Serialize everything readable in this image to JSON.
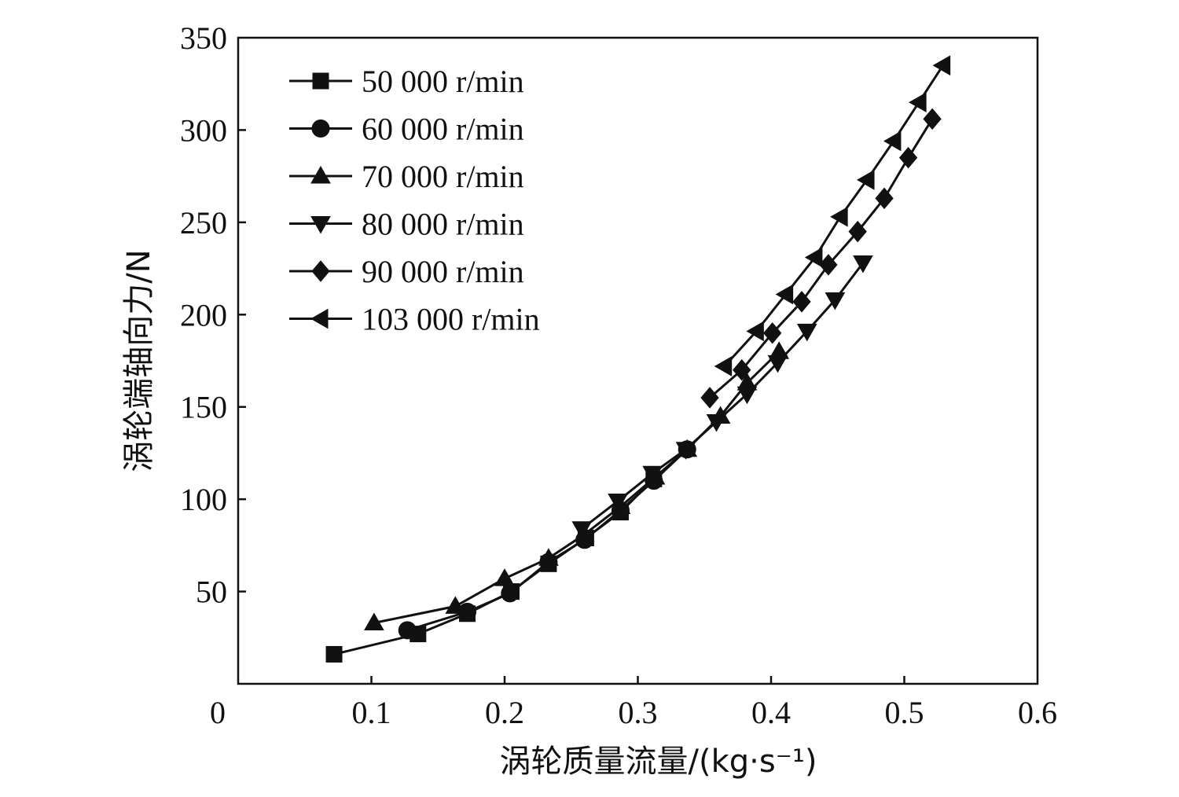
{
  "chart_data": {
    "type": "line",
    "xlabel": "涡轮质量流量/(kg·s⁻¹)",
    "ylabel": "涡轮端轴向力/N",
    "xlim": [
      0,
      0.6
    ],
    "ylim": [
      0,
      350
    ],
    "x_ticks": [
      "0",
      "0.1",
      "0.2",
      "0.3",
      "0.4",
      "0.5",
      "0.6"
    ],
    "y_ticks": [
      "50",
      "100",
      "150",
      "200",
      "250",
      "300",
      "350"
    ],
    "grid": false,
    "legend_position": "top-left",
    "color": "#111111",
    "series": [
      {
        "name": "50 000 r/min",
        "marker": "square",
        "x": [
          0.072,
          0.135,
          0.172,
          0.205,
          0.233,
          0.261,
          0.287,
          0.312
        ],
        "y": [
          16,
          27,
          38,
          50,
          65,
          79,
          93,
          111
        ]
      },
      {
        "name": "60 000 r/min",
        "marker": "circle",
        "x": [
          0.127,
          0.172,
          0.204,
          0.233,
          0.26,
          0.287,
          0.312,
          0.337
        ],
        "y": [
          29,
          39,
          49,
          66,
          78,
          94,
          110,
          127
        ]
      },
      {
        "name": "70 000 r/min",
        "marker": "triangle-up",
        "x": [
          0.102,
          0.163,
          0.2,
          0.233,
          0.26,
          0.287,
          0.313,
          0.337,
          0.362,
          0.382,
          0.406
        ],
        "y": [
          33,
          42,
          57,
          68,
          81,
          96,
          112,
          127,
          145,
          163,
          180
        ]
      },
      {
        "name": "80 000 r/min",
        "marker": "triangle-down",
        "x": [
          0.258,
          0.285,
          0.311,
          0.336,
          0.359,
          0.382,
          0.405,
          0.427,
          0.448,
          0.469
        ],
        "y": [
          84,
          99,
          114,
          127,
          142,
          157,
          174,
          191,
          208,
          228
        ]
      },
      {
        "name": "90 000 r/min",
        "marker": "diamond",
        "x": [
          0.354,
          0.378,
          0.401,
          0.423,
          0.443,
          0.465,
          0.485,
          0.503,
          0.521
        ],
        "y": [
          155,
          170,
          190,
          207,
          227,
          245,
          263,
          285,
          306
        ]
      },
      {
        "name": "103 000 r/min",
        "marker": "triangle-left",
        "x": [
          0.365,
          0.389,
          0.411,
          0.433,
          0.452,
          0.472,
          0.492,
          0.511,
          0.529
        ],
        "y": [
          172,
          191,
          211,
          231,
          253,
          273,
          294,
          315,
          335
        ]
      }
    ]
  }
}
